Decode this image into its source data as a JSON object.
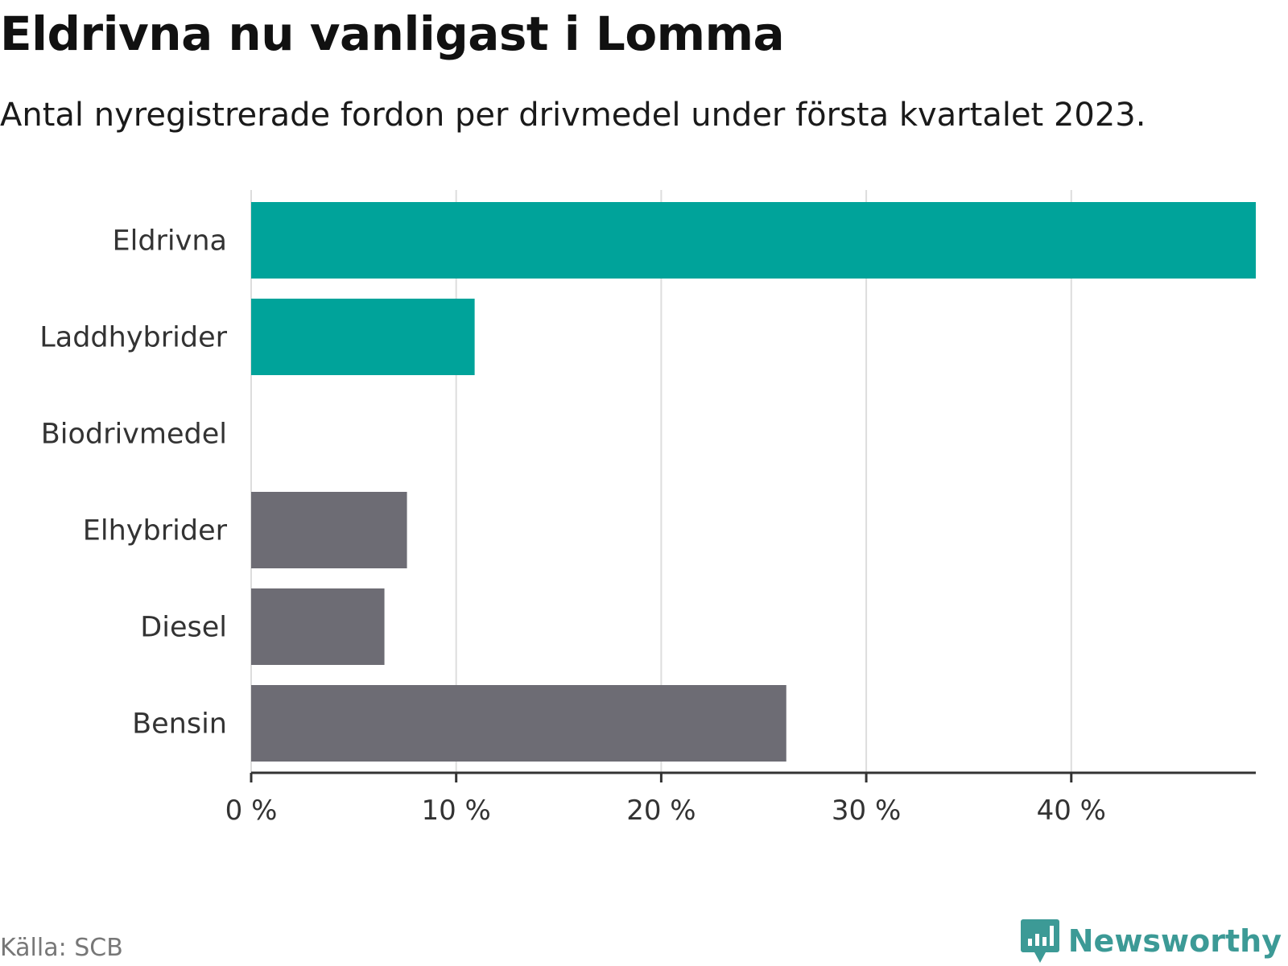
{
  "header": {
    "title": "Eldrivna nu vanligast i Lomma",
    "subtitle": "Antal nyregistrerade fordon per drivmedel under första kvartalet 2023."
  },
  "footer": {
    "source": "Källa: SCB",
    "brand": "Newsworthy",
    "brand_icon": "bar-chart-logo-icon"
  },
  "colors": {
    "electric": "#00a39a",
    "fossil": "#6d6c74",
    "grid": "#dddddd",
    "axis": "#333333",
    "text": "#333333",
    "brand": "#3c9a96"
  },
  "chart_data": {
    "type": "bar",
    "orientation": "horizontal",
    "title": "Eldrivna nu vanligast i Lomma",
    "subtitle": "Antal nyregistrerade fordon per drivmedel under första kvartalet 2023.",
    "xlabel": "",
    "ylabel": "",
    "categories": [
      "Eldrivna",
      "Laddhybrider",
      "Biodrivmedel",
      "Elhybrider",
      "Diesel",
      "Bensin"
    ],
    "values": [
      49.0,
      10.9,
      0,
      7.6,
      6.5,
      26.1
    ],
    "bar_color_group": [
      "electric",
      "electric",
      "electric",
      "fossil",
      "fossil",
      "fossil"
    ],
    "xlim": [
      0,
      49
    ],
    "xticks": [
      0,
      10,
      20,
      30,
      40
    ],
    "xtick_labels": [
      "0 %",
      "10 %",
      "20 %",
      "30 %",
      "40 %"
    ],
    "unit": "%",
    "grid": "vertical",
    "legend": "none"
  }
}
